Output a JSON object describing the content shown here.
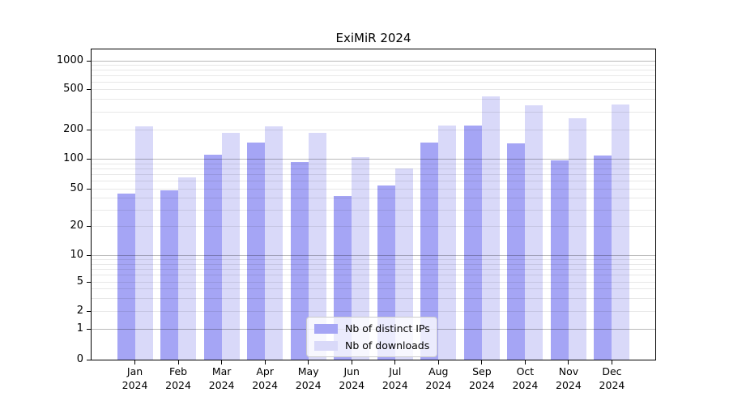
{
  "chart_data": {
    "type": "bar",
    "title": "ExiMiR 2024",
    "categories": [
      "Jan",
      "Feb",
      "Mar",
      "Apr",
      "May",
      "Jun",
      "Jul",
      "Aug",
      "Sep",
      "Oct",
      "Nov",
      "Dec"
    ],
    "x_tick_year": "2024",
    "series": [
      {
        "name": "Nb of distinct IPs",
        "color": "#a5a5f5",
        "values": [
          44,
          48,
          110,
          148,
          94,
          42,
          54,
          147,
          220,
          143,
          97,
          108
        ]
      },
      {
        "name": "Nb of downloads",
        "color": "#d9d9f9",
        "values": [
          215,
          65,
          185,
          215,
          185,
          105,
          80,
          220,
          420,
          345,
          258,
          350
        ]
      }
    ],
    "xlabel": "",
    "ylabel": "",
    "yscale": "log-like (compressed linear below 1, zero baseline shown)",
    "ylim": [
      0,
      1300
    ],
    "y_ticks": [
      0,
      1,
      2,
      5,
      10,
      20,
      50,
      100,
      200,
      500,
      1000
    ],
    "major_gridlines": [
      1,
      10,
      100,
      1000
    ],
    "minor_gridlines": [
      2,
      3,
      4,
      5,
      6,
      7,
      8,
      9,
      20,
      30,
      40,
      50,
      60,
      70,
      80,
      90,
      200,
      300,
      400,
      500,
      600,
      700,
      800,
      900
    ],
    "grid": true,
    "legend_position": "lower center",
    "legend_items": [
      "Nb of distinct IPs",
      "Nb of downloads"
    ]
  }
}
